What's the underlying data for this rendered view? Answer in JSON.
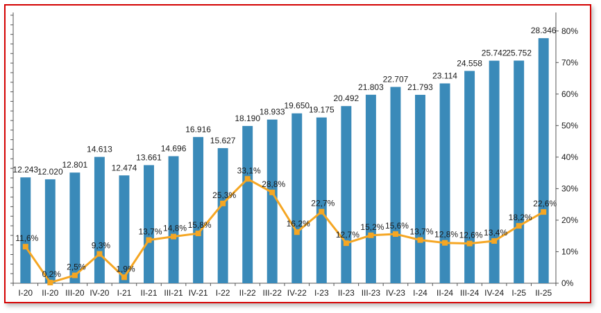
{
  "chart_data": {
    "type": "bar",
    "categories": [
      "I-20",
      "II-20",
      "III-20",
      "IV-20",
      "I-21",
      "II-21",
      "III-21",
      "IV-21",
      "I-22",
      "II-22",
      "III-22",
      "IV-22",
      "I-23",
      "II-23",
      "III-23",
      "IV-23",
      "I-24",
      "II-24",
      "III-24",
      "IV-24",
      "I-25",
      "II-25"
    ],
    "series": [
      {
        "type": "bar",
        "axis": "left",
        "color": "#3a8ab9",
        "values": [
          12243,
          12020,
          12801,
          14613,
          12474,
          13661,
          14696,
          16916,
          15627,
          18190,
          18933,
          19650,
          19175,
          20492,
          21803,
          22707,
          21793,
          23114,
          24558,
          25742,
          25752,
          28346
        ],
        "labels": [
          "12.243",
          "12.020",
          "12.801",
          "14.613",
          "12.474",
          "13.661",
          "14.696",
          "16.916",
          "15.627",
          "18.190",
          "18.933",
          "19.650",
          "19.175",
          "20.492",
          "21.803",
          "22.707",
          "21.793",
          "23.114",
          "24.558",
          "25.742",
          "25.752",
          "28.346"
        ]
      },
      {
        "type": "line",
        "axis": "right",
        "color": "#f5a623",
        "values": [
          11.6,
          0.2,
          2.5,
          9.3,
          1.9,
          13.7,
          14.8,
          15.8,
          25.3,
          33.1,
          28.8,
          16.2,
          22.7,
          12.7,
          15.2,
          15.6,
          13.7,
          12.8,
          12.6,
          13.4,
          18.2,
          22.6
        ],
        "labels": [
          "11,6%",
          "0,2%",
          "2,5%",
          "9,3%",
          "1,9%",
          "13,7%",
          "14,8%",
          "15,8%",
          "25,3%",
          "33,1%",
          "28,8%",
          "16,2%",
          "22,7%",
          "12,7%",
          "15,2%",
          "15,6%",
          "13,7%",
          "12,8%",
          "12,6%",
          "13,4%",
          "18,2%",
          "22,6%"
        ]
      }
    ],
    "y_left": {
      "ylim": [
        0,
        31000
      ],
      "tick_labels": false
    },
    "y_right": {
      "ylim": [
        0,
        85
      ],
      "ticks": [
        0,
        10,
        20,
        30,
        40,
        50,
        60,
        70,
        80
      ],
      "tick_labels": [
        "0%",
        "10%",
        "20%",
        "30%",
        "40%",
        "50%",
        "60%",
        "70%",
        "80%"
      ]
    },
    "grid": false,
    "legend": "none"
  }
}
